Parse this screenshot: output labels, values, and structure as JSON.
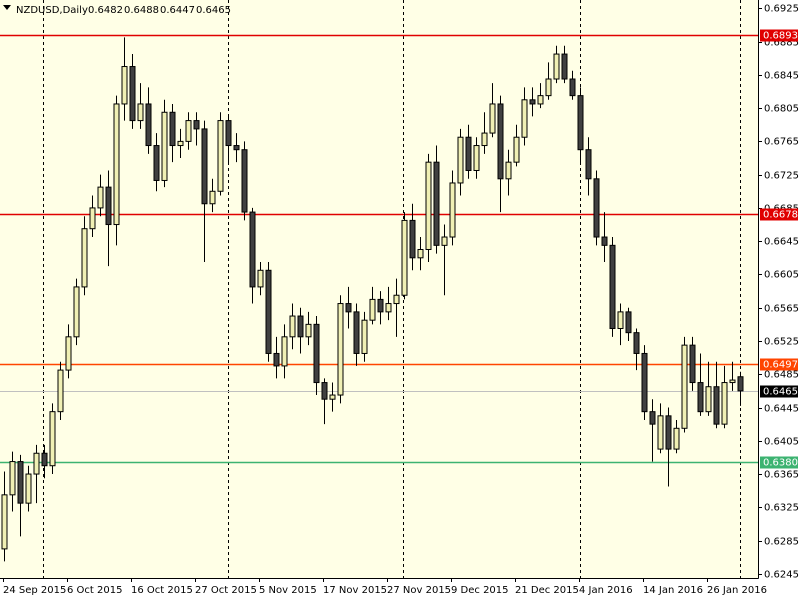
{
  "chart_data": {
    "type": "candlestick",
    "title": "NZDUSD,Daily",
    "up_color": "#f0f0b4",
    "down_color": "#404040",
    "background": "#ffffe6",
    "ylim": [
      0.624,
      0.6935
    ],
    "yticks": [
      0.6925,
      0.6885,
      0.6845,
      0.6805,
      0.6765,
      0.6725,
      0.6685,
      0.6645,
      0.6605,
      0.6565,
      0.6525,
      0.6485,
      0.6445,
      0.6405,
      0.6365,
      0.6325,
      0.6285,
      0.6245
    ],
    "categories": [
      "24 Sep 2015",
      null,
      null,
      null,
      null,
      null,
      null,
      null,
      "6 Oct 2015",
      null,
      null,
      null,
      null,
      null,
      null,
      null,
      "16 Oct 2015",
      null,
      null,
      null,
      null,
      null,
      null,
      null,
      "27 Oct 2015",
      null,
      null,
      null,
      null,
      null,
      null,
      null,
      "5 Nov 2015",
      null,
      null,
      null,
      null,
      null,
      null,
      null,
      "17 Nov 2015",
      null,
      null,
      null,
      null,
      null,
      null,
      null,
      "27 Nov 2015",
      null,
      null,
      null,
      null,
      null,
      null,
      null,
      "9 Dec 2015",
      null,
      null,
      null,
      null,
      null,
      null,
      null,
      "21 Dec 2015",
      null,
      null,
      null,
      null,
      null,
      null,
      null,
      "4 Jan 2016",
      null,
      null,
      null,
      null,
      null,
      null,
      null,
      "14 Jan 2016",
      null,
      null,
      null,
      null,
      null,
      null,
      null,
      "26 Jan 2016",
      null,
      null,
      null,
      null
    ],
    "open": [
      0.6275,
      0.634,
      0.638,
      0.633,
      0.6365,
      0.639,
      0.6375,
      0.644,
      0.649,
      0.653,
      0.659,
      0.666,
      0.6685,
      0.671,
      0.6665,
      0.681,
      0.6855,
      0.679,
      0.681,
      0.676,
      0.6718,
      0.68,
      0.676,
      0.6765,
      0.679,
      0.678,
      0.669,
      0.6705,
      0.679,
      0.676,
      0.6755,
      0.668,
      0.659,
      0.661,
      0.651,
      0.6495,
      0.653,
      0.6555,
      0.653,
      0.6545,
      0.6475,
      0.6455,
      0.646,
      0.657,
      0.656,
      0.651,
      0.655,
      0.6575,
      0.656,
      0.657,
      0.658,
      0.667,
      0.6625,
      0.6635,
      0.674,
      0.664,
      0.665,
      0.6715,
      0.677,
      0.673,
      0.676,
      0.6775,
      0.681,
      0.672,
      0.674,
      0.677,
      0.6815,
      0.681,
      0.682,
      0.684,
      0.687,
      0.684,
      0.682,
      0.6755,
      0.672,
      0.665,
      0.664,
      0.654,
      0.656,
      0.6535,
      0.651,
      0.644,
      0.6395,
      0.6435,
      0.6395,
      0.642,
      0.652,
      0.6475,
      0.644,
      0.647,
      0.6425,
      0.6475,
      0.6482
    ],
    "high": [
      0.6368,
      0.6392,
      0.6388,
      0.6375,
      0.64,
      0.64,
      0.645,
      0.65,
      0.6545,
      0.66,
      0.6675,
      0.67,
      0.6725,
      0.673,
      0.682,
      0.689,
      0.687,
      0.6835,
      0.683,
      0.6775,
      0.6815,
      0.681,
      0.678,
      0.68,
      0.68,
      0.679,
      0.672,
      0.68,
      0.6795,
      0.6775,
      0.6765,
      0.6685,
      0.662,
      0.662,
      0.653,
      0.6545,
      0.657,
      0.6565,
      0.656,
      0.6555,
      0.648,
      0.6475,
      0.658,
      0.659,
      0.657,
      0.656,
      0.659,
      0.6585,
      0.659,
      0.66,
      0.668,
      0.669,
      0.665,
      0.675,
      0.676,
      0.6665,
      0.673,
      0.678,
      0.6785,
      0.677,
      0.68,
      0.6835,
      0.682,
      0.6755,
      0.6785,
      0.683,
      0.683,
      0.6835,
      0.686,
      0.688,
      0.688,
      0.685,
      0.683,
      0.677,
      0.673,
      0.668,
      0.665,
      0.657,
      0.6565,
      0.654,
      0.652,
      0.6455,
      0.645,
      0.6445,
      0.643,
      0.653,
      0.653,
      0.651,
      0.65,
      0.65,
      0.6495,
      0.65,
      0.6488
    ],
    "low": [
      0.626,
      0.632,
      0.629,
      0.632,
      0.633,
      0.636,
      0.6365,
      0.643,
      0.648,
      0.652,
      0.658,
      0.665,
      0.6675,
      0.6615,
      0.664,
      0.679,
      0.678,
      0.678,
      0.675,
      0.6705,
      0.671,
      0.674,
      0.6745,
      0.6755,
      0.676,
      0.662,
      0.668,
      0.67,
      0.674,
      0.674,
      0.667,
      0.657,
      0.658,
      0.65,
      0.648,
      0.648,
      0.6515,
      0.651,
      0.652,
      0.646,
      0.6425,
      0.644,
      0.645,
      0.654,
      0.6495,
      0.65,
      0.6545,
      0.6545,
      0.655,
      0.653,
      0.6575,
      0.661,
      0.661,
      0.662,
      0.663,
      0.658,
      0.664,
      0.67,
      0.672,
      0.672,
      0.675,
      0.677,
      0.668,
      0.67,
      0.6735,
      0.676,
      0.6795,
      0.6805,
      0.6815,
      0.6835,
      0.6835,
      0.6815,
      0.674,
      0.67,
      0.664,
      0.662,
      0.653,
      0.652,
      0.6525,
      0.649,
      0.643,
      0.638,
      0.639,
      0.635,
      0.639,
      0.6415,
      0.6465,
      0.6435,
      0.6435,
      0.642,
      0.642,
      0.6465,
      0.6447
    ],
    "close": [
      0.634,
      0.638,
      0.633,
      0.6365,
      0.639,
      0.6375,
      0.644,
      0.649,
      0.653,
      0.659,
      0.666,
      0.6685,
      0.671,
      0.6665,
      0.681,
      0.6855,
      0.679,
      0.681,
      0.676,
      0.6718,
      0.68,
      0.676,
      0.6765,
      0.679,
      0.678,
      0.669,
      0.6705,
      0.679,
      0.676,
      0.6755,
      0.668,
      0.659,
      0.661,
      0.651,
      0.6495,
      0.653,
      0.6555,
      0.653,
      0.6545,
      0.6475,
      0.6455,
      0.646,
      0.657,
      0.656,
      0.651,
      0.655,
      0.6575,
      0.656,
      0.657,
      0.658,
      0.667,
      0.6625,
      0.6635,
      0.674,
      0.664,
      0.665,
      0.6715,
      0.677,
      0.673,
      0.676,
      0.6775,
      0.681,
      0.672,
      0.674,
      0.677,
      0.6815,
      0.681,
      0.682,
      0.684,
      0.687,
      0.684,
      0.682,
      0.6755,
      0.672,
      0.665,
      0.664,
      0.654,
      0.656,
      0.6535,
      0.651,
      0.644,
      0.6425,
      0.6435,
      0.6395,
      0.642,
      0.652,
      0.6475,
      0.644,
      0.647,
      0.6425,
      0.6475,
      0.6478,
      0.6465
    ],
    "levels": [
      {
        "value": 0.6893,
        "label": "0.6893",
        "color": "#e00000"
      },
      {
        "value": 0.6678,
        "label": "0.6678",
        "color": "#e00000"
      },
      {
        "value": 0.6497,
        "label": "0.6497",
        "color": "#ff4500"
      },
      {
        "value": 0.638,
        "label": "0.6380",
        "color": "#3cb371"
      },
      {
        "value": 0.6465,
        "label": "0.6465",
        "color": "#c0c0c0",
        "label_color": "#000000"
      }
    ]
  }
}
